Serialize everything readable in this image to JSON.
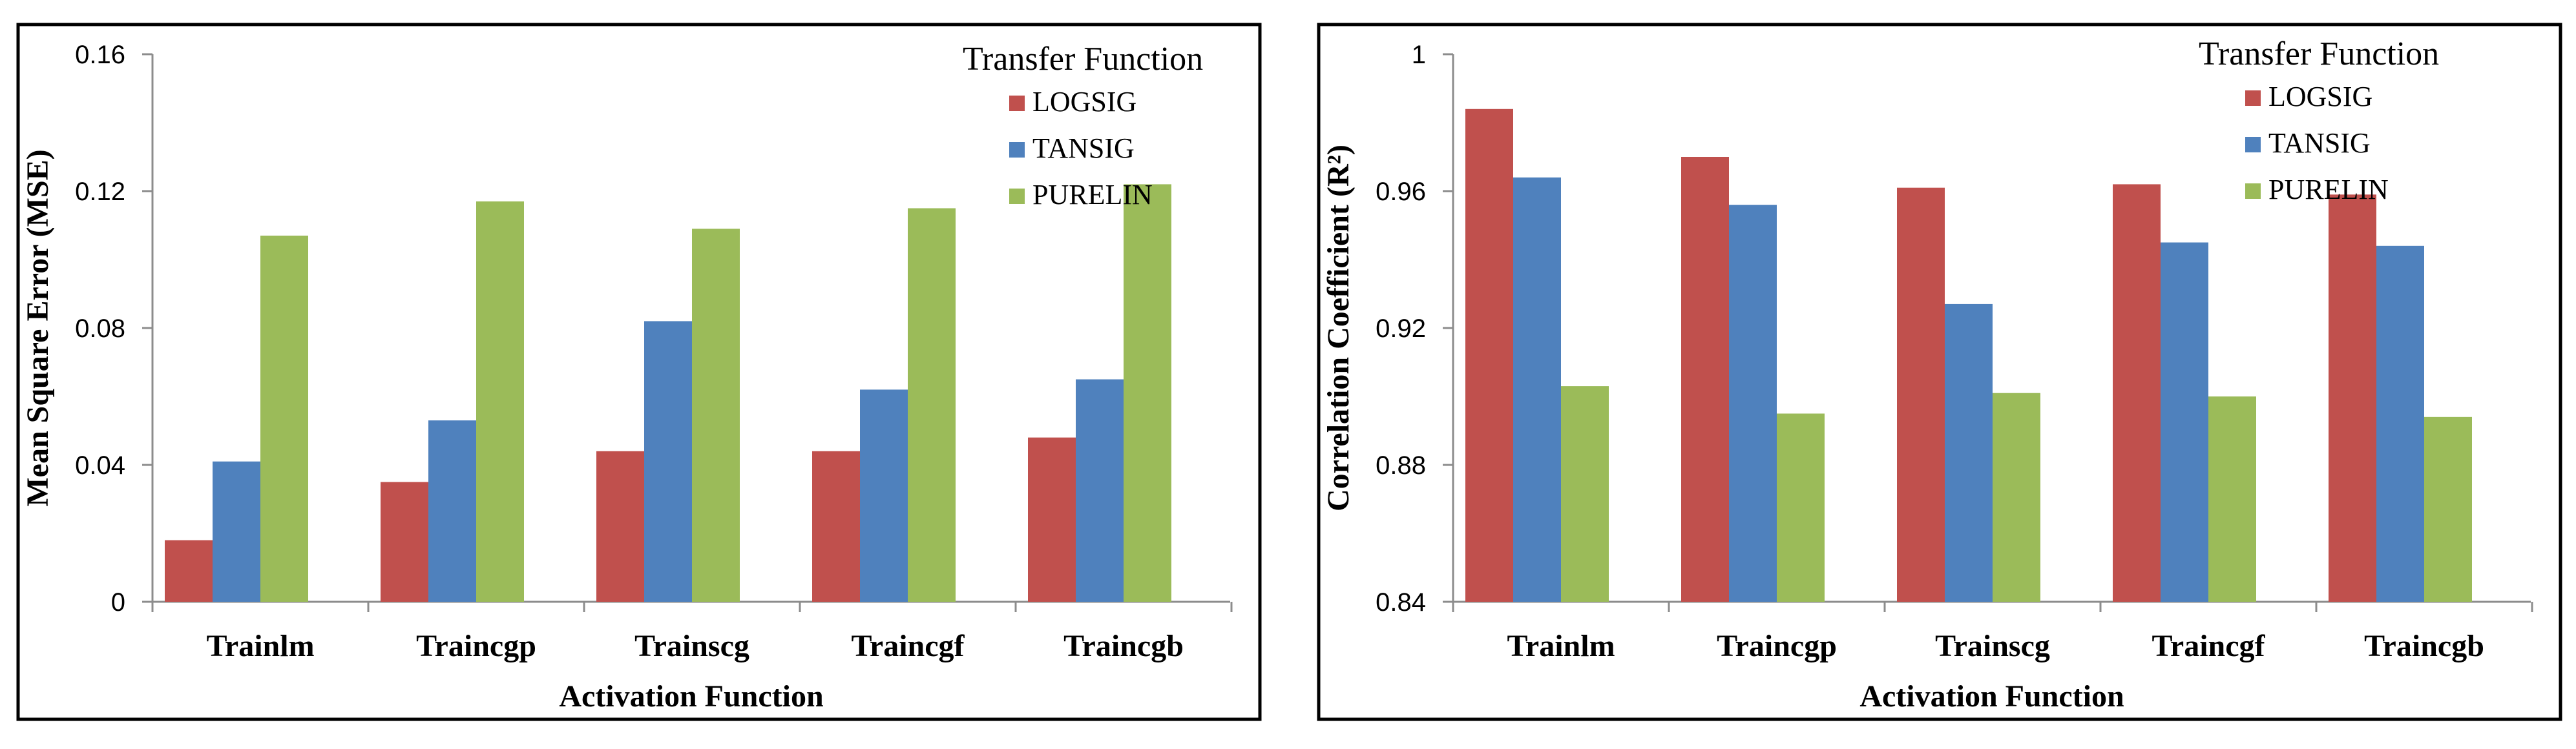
{
  "colors": {
    "LOGSIG": "#C0504D",
    "TANSIG": "#4F81BD",
    "PURELIN": "#9BBB59"
  },
  "chart_data": [
    {
      "type": "bar",
      "title": "",
      "xlabel": "Activation Function",
      "ylabel": "Mean Square Error (MSE)",
      "categories": [
        "Trainlm",
        "Traincgp",
        "Trainscg",
        "Traincgf",
        "Traincgb"
      ],
      "ylim": [
        0,
        0.16
      ],
      "yticks": [
        0,
        0.04,
        0.08,
        0.12,
        0.16
      ],
      "ytick_labels": [
        "0",
        "0.04",
        "0.08",
        "0.12",
        "0.16"
      ],
      "legend_title": "Transfer Function",
      "legend_position": "top-right",
      "grid": false,
      "series": [
        {
          "name": "LOGSIG",
          "values": [
            0.018,
            0.035,
            0.044,
            0.044,
            0.048
          ]
        },
        {
          "name": "TANSIG",
          "values": [
            0.041,
            0.053,
            0.082,
            0.062,
            0.065
          ]
        },
        {
          "name": "PURELIN",
          "values": [
            0.107,
            0.117,
            0.109,
            0.115,
            0.122
          ]
        }
      ]
    },
    {
      "type": "bar",
      "title": "",
      "xlabel": "Activation Function",
      "ylabel": "Correlation Coefficient (R²)",
      "categories": [
        "Trainlm",
        "Traincgp",
        "Trainscg",
        "Traincgf",
        "Traincgb"
      ],
      "ylim": [
        0.84,
        1
      ],
      "yticks": [
        0.84,
        0.88,
        0.92,
        0.96,
        1
      ],
      "ytick_labels": [
        "0.84",
        "0.88",
        "0.92",
        "0.96",
        "1"
      ],
      "legend_title": "Transfer Function",
      "legend_position": "top-right",
      "grid": false,
      "series": [
        {
          "name": "LOGSIG",
          "values": [
            0.984,
            0.97,
            0.961,
            0.962,
            0.959
          ]
        },
        {
          "name": "TANSIG",
          "values": [
            0.964,
            0.956,
            0.927,
            0.945,
            0.944
          ]
        },
        {
          "name": "PURELIN",
          "values": [
            0.903,
            0.895,
            0.901,
            0.9,
            0.894
          ]
        }
      ]
    }
  ]
}
